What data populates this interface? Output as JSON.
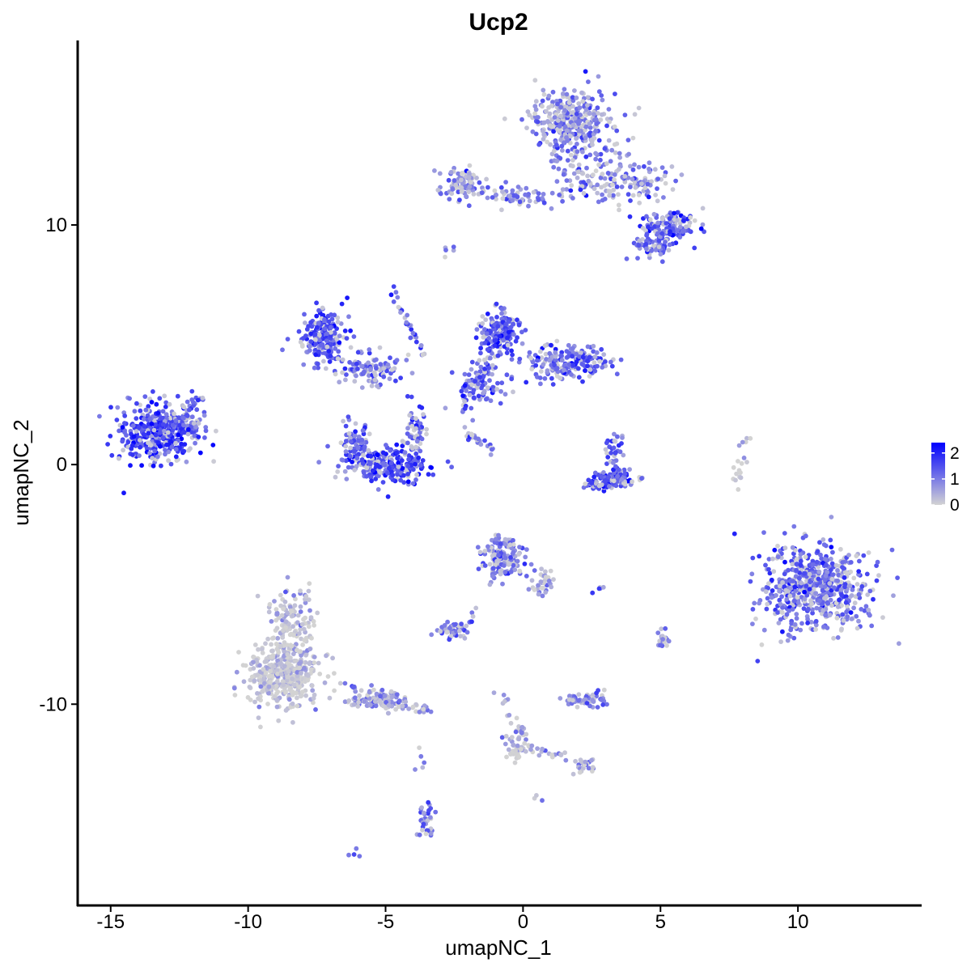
{
  "chart_data": {
    "type": "scatter",
    "title": "Ucp2",
    "xlabel": "umapNC_1",
    "ylabel": "umapNC_2",
    "xlim": [
      -16.2,
      14.5
    ],
    "ylim": [
      -18.4,
      17.7
    ],
    "x_ticks": [
      -15,
      -10,
      -5,
      0,
      5,
      10
    ],
    "y_ticks": [
      -10,
      0,
      10
    ],
    "x_tick_labels": [
      "-15",
      "-10",
      "-5",
      "0",
      "5",
      "10"
    ],
    "y_tick_labels": [
      "-10",
      "0",
      "10"
    ],
    "grid": false,
    "color_scale": {
      "low": "#d3d3d3",
      "high": "#0000ff",
      "min": 0,
      "max": 2.4,
      "legend_ticks": [
        2,
        1,
        0
      ],
      "legend_tick_labels": [
        "2",
        "1",
        "0"
      ],
      "legend_position": "right"
    },
    "clusters": [
      {
        "cx": 1.8,
        "cy": 14.3,
        "sx": 1.0,
        "sy": 1.0,
        "n": 340,
        "mean": 0.95
      },
      {
        "cx": 2.6,
        "cy": 12.2,
        "sx": 1.1,
        "sy": 0.8,
        "n": 110,
        "mean": 0.9
      },
      {
        "cx": 4.3,
        "cy": 11.8,
        "sx": 0.9,
        "sy": 0.5,
        "n": 70,
        "mean": 1.0
      },
      {
        "cx": 5.3,
        "cy": 9.9,
        "sx": 0.7,
        "sy": 0.5,
        "n": 120,
        "mean": 1.35
      },
      {
        "cx": 4.7,
        "cy": 9.1,
        "sx": 0.5,
        "sy": 0.4,
        "n": 60,
        "mean": 1.1
      },
      {
        "cx": -2.3,
        "cy": 11.8,
        "sx": 0.6,
        "sy": 0.4,
        "n": 80,
        "mean": 0.9
      },
      {
        "cx": -0.3,
        "cy": 11.2,
        "sx": 1.3,
        "sy": 0.25,
        "n": 70,
        "mean": 1.0
      },
      {
        "cx": -13.3,
        "cy": 1.3,
        "sx": 1.0,
        "sy": 0.8,
        "n": 380,
        "mean": 1.6
      },
      {
        "cx": -12.0,
        "cy": 1.8,
        "sx": 0.4,
        "sy": 0.6,
        "n": 50,
        "mean": 1.2
      },
      {
        "cx": -7.3,
        "cy": 5.3,
        "sx": 0.5,
        "sy": 0.7,
        "n": 200,
        "mean": 1.5
      },
      {
        "cx": -5.6,
        "cy": 4.0,
        "sx": 0.8,
        "sy": 0.5,
        "n": 110,
        "mean": 1.2
      },
      {
        "cx": -5.0,
        "cy": 0.0,
        "sx": 1.1,
        "sy": 0.5,
        "n": 240,
        "mean": 1.6
      },
      {
        "cx": -6.1,
        "cy": 0.9,
        "sx": 0.3,
        "sy": 0.6,
        "n": 60,
        "mean": 1.3
      },
      {
        "cx": -3.9,
        "cy": 1.5,
        "sx": 0.3,
        "sy": 0.8,
        "n": 60,
        "mean": 1.3
      },
      {
        "cx": -0.9,
        "cy": 5.5,
        "sx": 0.5,
        "sy": 0.6,
        "n": 170,
        "mean": 1.5
      },
      {
        "cx": 1.7,
        "cy": 4.3,
        "sx": 0.9,
        "sy": 0.5,
        "n": 190,
        "mean": 1.3
      },
      {
        "cx": -1.5,
        "cy": 3.3,
        "sx": 0.7,
        "sy": 0.6,
        "n": 90,
        "mean": 1.2
      },
      {
        "cx": 3.2,
        "cy": -0.7,
        "sx": 0.6,
        "sy": 0.25,
        "n": 110,
        "mean": 1.45
      },
      {
        "cx": 3.3,
        "cy": 0.5,
        "sx": 0.2,
        "sy": 0.6,
        "n": 40,
        "mean": 1.3
      },
      {
        "cx": 10.6,
        "cy": -5.1,
        "sx": 1.3,
        "sy": 1.2,
        "n": 600,
        "mean": 1.15
      },
      {
        "cx": -8.7,
        "cy": -8.8,
        "sx": 0.9,
        "sy": 0.9,
        "n": 420,
        "mean": 0.15
      },
      {
        "cx": -8.4,
        "cy": -6.4,
        "sx": 0.6,
        "sy": 0.9,
        "n": 120,
        "mean": 0.2
      },
      {
        "cx": -5.4,
        "cy": -9.9,
        "sx": 0.7,
        "sy": 0.3,
        "n": 90,
        "mean": 0.6
      },
      {
        "cx": -0.7,
        "cy": -3.9,
        "sx": 0.5,
        "sy": 0.6,
        "n": 150,
        "mean": 0.95
      },
      {
        "cx": 0.7,
        "cy": -4.8,
        "sx": 0.3,
        "sy": 0.5,
        "n": 35,
        "mean": 0.6
      },
      {
        "cx": -2.5,
        "cy": -6.9,
        "sx": 0.4,
        "sy": 0.25,
        "n": 50,
        "mean": 1.2
      },
      {
        "cx": 2.3,
        "cy": -9.8,
        "sx": 0.5,
        "sy": 0.2,
        "n": 60,
        "mean": 1.0
      },
      {
        "cx": -0.2,
        "cy": -11.8,
        "sx": 0.35,
        "sy": 0.4,
        "n": 40,
        "mean": 0.2
      },
      {
        "cx": 2.3,
        "cy": -12.6,
        "sx": 0.3,
        "sy": 0.2,
        "n": 20,
        "mean": 0.5
      },
      {
        "cx": -3.5,
        "cy": -14.9,
        "sx": 0.2,
        "sy": 0.5,
        "n": 35,
        "mean": 1.0
      },
      {
        "cx": 5.1,
        "cy": -7.3,
        "sx": 0.2,
        "sy": 0.25,
        "n": 20,
        "mean": 1.1
      },
      {
        "cx": 7.9,
        "cy": -0.3,
        "sx": 0.15,
        "sy": 0.5,
        "n": 15,
        "mean": 0.3
      }
    ],
    "streaks": [
      {
        "x1": -4.8,
        "y1": 7.3,
        "x2": -3.6,
        "y2": 4.5,
        "n": 30,
        "mean": 1.4
      },
      {
        "x1": -2.3,
        "y1": 2.3,
        "x2": -1.0,
        "y2": 5.0,
        "n": 30,
        "mean": 1.3
      },
      {
        "x1": -2.2,
        "y1": 1.5,
        "x2": -1.1,
        "y2": 0.6,
        "n": 25,
        "mean": 1.3
      },
      {
        "x1": -12.6,
        "y1": 1.8,
        "x2": -11.5,
        "y2": 2.8,
        "n": 15,
        "mean": 1.2
      },
      {
        "x1": -3.5,
        "y1": -10.3,
        "x2": -6.5,
        "y2": -9.2,
        "n": 40,
        "mean": 0.7
      },
      {
        "x1": -0.9,
        "y1": -9.4,
        "x2": 0.2,
        "y2": -11.9,
        "n": 25,
        "mean": 0.7
      },
      {
        "x1": 0.5,
        "y1": -11.9,
        "x2": 2.3,
        "y2": -12.5,
        "n": 20,
        "mean": 0.4
      },
      {
        "x1": -3.7,
        "y1": -11.7,
        "x2": -3.7,
        "y2": -12.8,
        "n": 5,
        "mean": 0.8
      },
      {
        "x1": 2.9,
        "y1": -5.1,
        "x2": 2.6,
        "y2": -5.2,
        "n": 5,
        "mean": 1.1
      },
      {
        "x1": -1.7,
        "y1": -5.8,
        "x2": -1.9,
        "y2": -6.6,
        "n": 6,
        "mean": 1.0
      },
      {
        "x1": -3.0,
        "y1": 8.7,
        "x2": -2.6,
        "y2": 9.0,
        "n": 5,
        "mean": 0.9
      },
      {
        "x1": 0.6,
        "y1": -13.9,
        "x2": 0.6,
        "y2": -14.0,
        "n": 3,
        "mean": 1.2
      },
      {
        "x1": -6.2,
        "y1": -16.3,
        "x2": -6.0,
        "y2": -16.1,
        "n": 4,
        "mean": 1.2
      },
      {
        "x1": 8.0,
        "y1": 0.9,
        "x2": 8.3,
        "y2": 1.0,
        "n": 4,
        "mean": 0.4
      }
    ]
  }
}
